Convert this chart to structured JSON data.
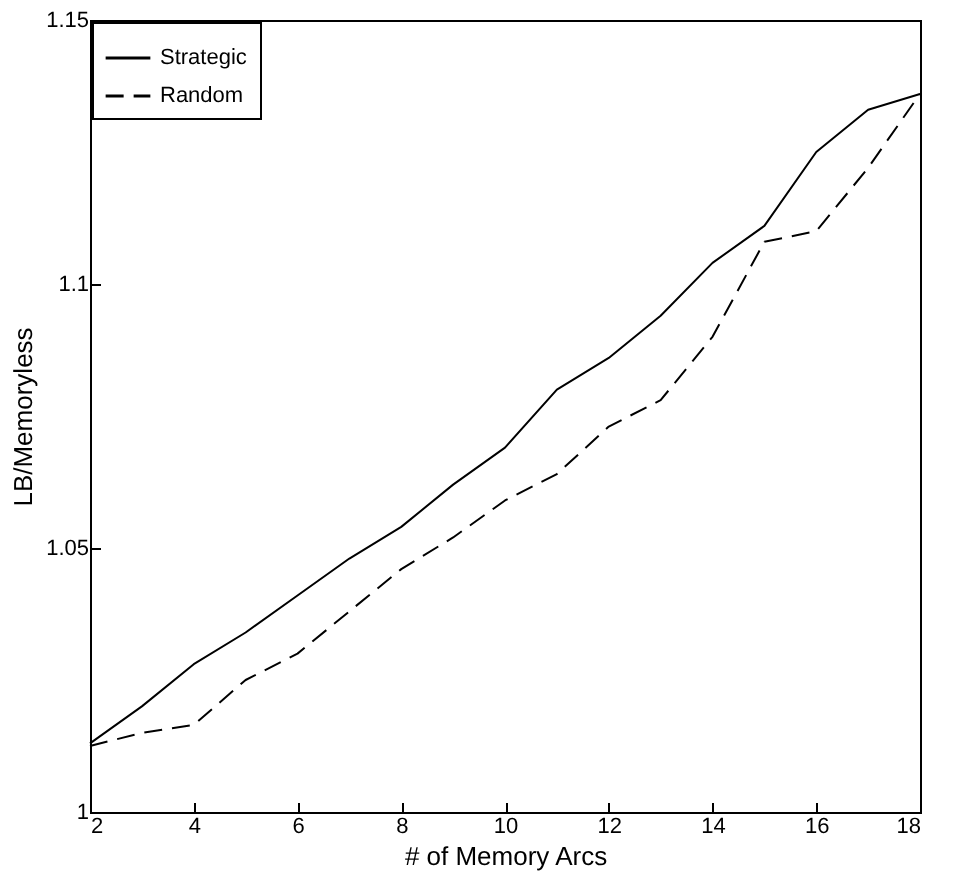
{
  "chart_data": {
    "type": "line",
    "xlabel": "# of Memory Arcs",
    "ylabel": "LB/Memoryless",
    "x": [
      2,
      3,
      4,
      5,
      6,
      7,
      8,
      9,
      10,
      11,
      12,
      13,
      14,
      15,
      16,
      17,
      18
    ],
    "series": [
      {
        "name": "Strategic",
        "color": "#000000",
        "line_style": "solid",
        "values": [
          1.013,
          1.02,
          1.028,
          1.034,
          1.041,
          1.048,
          1.054,
          1.062,
          1.069,
          1.08,
          1.086,
          1.094,
          1.104,
          1.111,
          1.125,
          1.133,
          1.136
        ]
      },
      {
        "name": "Random",
        "color": "#000000",
        "line_style": "dashed",
        "values": [
          1.0125,
          1.015,
          1.0165,
          1.025,
          1.03,
          1.038,
          1.046,
          1.052,
          1.059,
          1.064,
          1.073,
          1.078,
          1.09,
          1.108,
          1.11,
          1.122,
          1.136
        ]
      }
    ],
    "xlim": [
      2,
      18
    ],
    "xticks": [
      2,
      4,
      6,
      8,
      10,
      12,
      14,
      16,
      18
    ],
    "ylim": [
      1,
      1.15
    ],
    "yticks": [
      1,
      1.05,
      1.1,
      1.15
    ],
    "grid": false,
    "legend": "top left",
    "marker": "none"
  }
}
